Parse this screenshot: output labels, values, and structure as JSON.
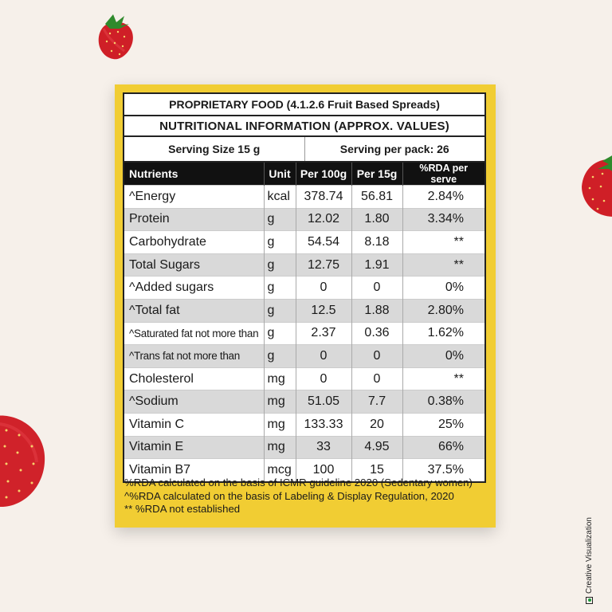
{
  "colors": {
    "background": "#f6f0ea",
    "panel": "#f1cd33",
    "header_bg": "#111111",
    "stripe": "#d9d9d9",
    "strawberry": "#d8232a"
  },
  "label": {
    "title": "PROPRIETARY FOOD (4.1.2.6 Fruit Based Spreads)",
    "subtitle": "NUTRITIONAL INFORMATION (APPROX. VALUES)",
    "serving_size": "Serving Size 15 g",
    "servings_per_pack": "Serving per pack: 26"
  },
  "table": {
    "headers": [
      "Nutrients",
      "Unit",
      "Per 100g",
      "Per 15g",
      "%RDA per serve"
    ],
    "rows": [
      {
        "name": "^Energy",
        "unit": "kcal",
        "per100": "378.74",
        "per15": "56.81",
        "rda": "2.84%"
      },
      {
        "name": "Protein",
        "unit": "g",
        "per100": "12.02",
        "per15": "1.80",
        "rda": "3.34%"
      },
      {
        "name": "Carbohydrate",
        "unit": "g",
        "per100": "54.54",
        "per15": "8.18",
        "rda": "**"
      },
      {
        "name": "Total Sugars",
        "unit": "g",
        "per100": "12.75",
        "per15": "1.91",
        "rda": "**"
      },
      {
        "name": "^Added sugars",
        "unit": "g",
        "per100": "0",
        "per15": "0",
        "rda": "0%"
      },
      {
        "name": "^Total fat",
        "unit": "g",
        "per100": "12.5",
        "per15": "1.88",
        "rda": "2.80%"
      },
      {
        "name": "^Saturated fat not more than",
        "unit": "g",
        "per100": "2.37",
        "per15": "0.36",
        "rda": "1.62%"
      },
      {
        "name": "^Trans fat not more than",
        "unit": "g",
        "per100": "0",
        "per15": "0",
        "rda": "0%"
      },
      {
        "name": "Cholesterol",
        "unit": "mg",
        "per100": "0",
        "per15": "0",
        "rda": "**"
      },
      {
        "name": "^Sodium",
        "unit": "mg",
        "per100": "51.05",
        "per15": "7.7",
        "rda": "0.38%"
      },
      {
        "name": "Vitamin C",
        "unit": "mg",
        "per100": "133.33",
        "per15": "20",
        "rda": "25%"
      },
      {
        "name": "Vitamin E",
        "unit": "mg",
        "per100": "33",
        "per15": "4.95",
        "rda": "66%"
      },
      {
        "name": "Vitamin B7",
        "unit": "mcg",
        "per100": "100",
        "per15": "15",
        "rda": "37.5%"
      }
    ]
  },
  "notes": [
    "%RDA calculated on the basis of ICMR guideline 2020 (Sedentary women)",
    "^%RDA  calculated on the basis of Labeling & Display Regulation, 2020",
    "** %RDA not established"
  ],
  "watermark": {
    "text": "Creative Visualization",
    "icon": "green-dot-icon"
  },
  "decorations": [
    "strawberry-icon",
    "strawberry-icon",
    "strawberry-icon"
  ]
}
